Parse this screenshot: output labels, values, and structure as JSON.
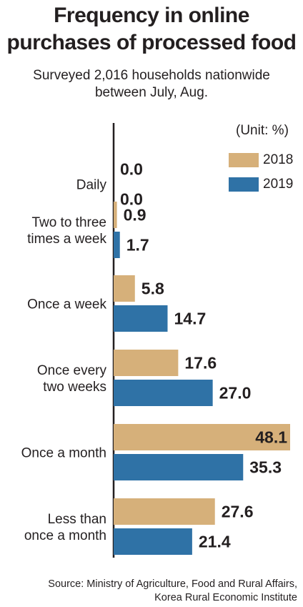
{
  "title_lines": [
    "Frequency in online",
    "purchases of processed food"
  ],
  "subtitle_lines": [
    "Surveyed 2,016 households nationwide",
    "between July, Aug."
  ],
  "unit": "(Unit: %)",
  "source_lines": [
    "Source: Ministry of Agriculture, Food and Rural Affairs,",
    "Korea Rural Economic Institute"
  ],
  "colors": {
    "2018": "#d6b07a",
    "2019": "#2f72a6",
    "text": "#231f20",
    "axis": "#231f20"
  },
  "chart_data": {
    "type": "bar",
    "orientation": "horizontal",
    "categories": [
      [
        "Daily"
      ],
      [
        "Two to three",
        "times a week"
      ],
      [
        "Once a week"
      ],
      [
        "Once every",
        "two weeks"
      ],
      [
        "Once a month"
      ],
      [
        "Less than",
        "once a month"
      ]
    ],
    "series": [
      {
        "name": "2018",
        "values": [
          0.0,
          0.9,
          5.8,
          17.6,
          48.1,
          27.6
        ]
      },
      {
        "name": "2019",
        "values": [
          0.0,
          1.7,
          14.7,
          27.0,
          35.3,
          21.4
        ]
      }
    ],
    "value_labels": [
      [
        "0.0",
        "0.9",
        "5.8",
        "17.6",
        "48.1",
        "27.6"
      ],
      [
        "0.0",
        "1.7",
        "14.7",
        "27.0",
        "35.3",
        "21.4"
      ]
    ],
    "xlim": [
      0,
      48.1
    ],
    "legend_position": "top-right",
    "grid": false
  }
}
